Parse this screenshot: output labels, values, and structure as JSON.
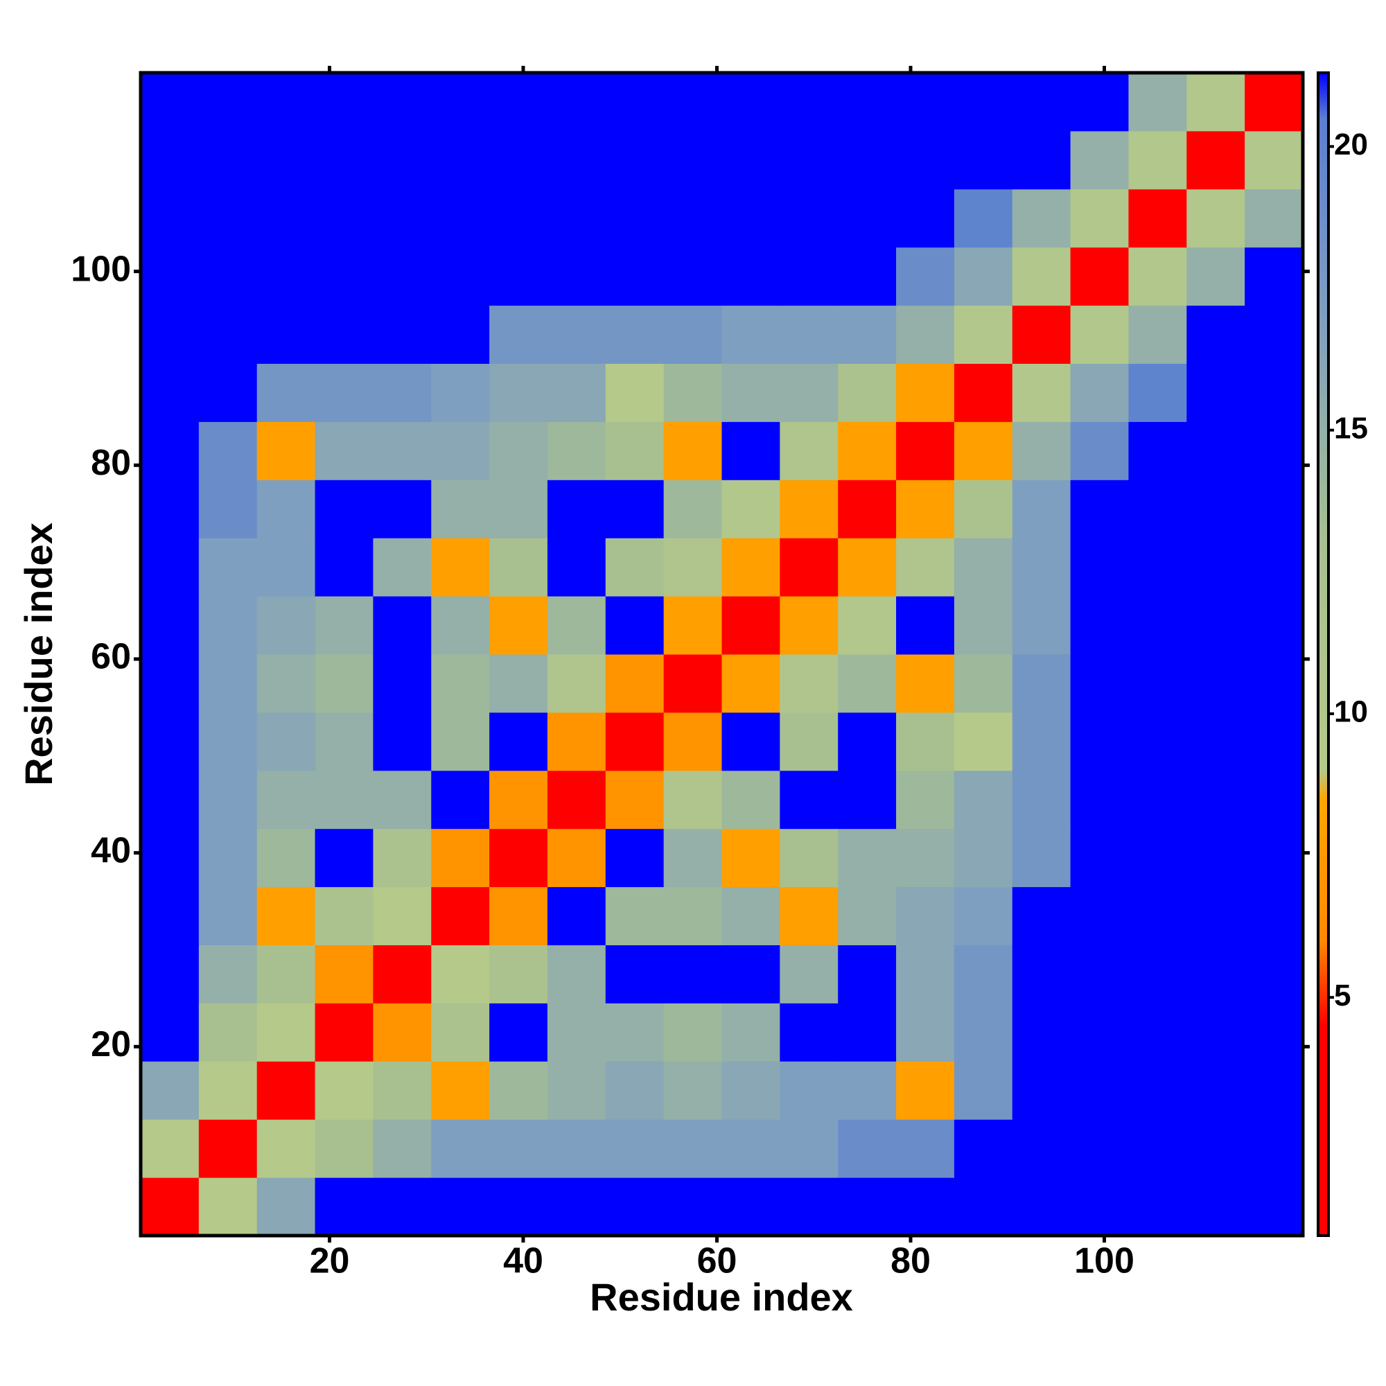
{
  "chart_data": {
    "type": "heatmap",
    "xlabel": "Residue index",
    "ylabel": "Residue index",
    "x": [
      3.5,
      9.5,
      15.5,
      21.5,
      27.5,
      33.5,
      39.5,
      45.5,
      51.5,
      57.5,
      63.5,
      69.5,
      75.5,
      81.5,
      87.5,
      93.5,
      99.5,
      105.5,
      111.5,
      117.5
    ],
    "y": [
      3.5,
      9.5,
      15.5,
      21.5,
      27.5,
      33.5,
      39.5,
      45.5,
      51.5,
      57.5,
      63.5,
      69.5,
      75.5,
      81.5,
      87.5,
      93.5,
      99.5,
      105.5,
      111.5,
      117.5
    ],
    "z": [
      [
        3,
        9,
        16,
        21.3,
        21.3,
        21.3,
        21.3,
        21.3,
        21.3,
        21.3,
        21.3,
        21.3,
        21.3,
        21.3,
        21.3,
        21.3,
        21.3,
        21.3,
        21.3,
        21.3
      ],
      [
        9,
        3,
        9,
        13,
        15,
        17,
        17,
        17,
        17,
        17,
        17,
        17,
        19,
        19,
        21.3,
        21.3,
        21.3,
        21.3,
        21.3,
        21.3
      ],
      [
        16,
        9,
        3,
        9,
        13,
        8,
        14,
        15,
        16,
        15,
        16,
        17,
        17,
        8,
        18,
        21.3,
        21.3,
        21.3,
        21.3,
        21.3
      ],
      [
        21.3,
        13,
        9,
        3,
        7,
        12,
        21.3,
        15,
        15,
        14,
        15,
        21.3,
        21.3,
        16,
        18,
        21.3,
        21.3,
        21.3,
        21.3,
        21.3
      ],
      [
        21.3,
        15,
        13,
        7,
        3,
        9,
        12,
        15,
        21.3,
        21.3,
        21.3,
        15,
        21.3,
        16,
        18,
        21.3,
        21.3,
        21.3,
        21.3,
        21.3
      ],
      [
        21.3,
        17,
        8,
        12,
        9,
        3,
        7,
        21.3,
        14,
        14,
        15,
        8,
        15,
        16,
        17,
        21.3,
        21.3,
        21.3,
        21.3,
        21.3
      ],
      [
        21.3,
        17,
        14,
        21.3,
        12,
        7,
        3,
        7,
        21.3,
        15,
        8,
        13,
        15,
        15,
        16,
        18,
        21.3,
        21.3,
        21.3,
        21.3
      ],
      [
        21.3,
        17,
        15,
        15,
        15,
        21.3,
        7,
        3,
        7,
        11,
        14,
        21.3,
        21.3,
        14,
        16,
        18,
        21.3,
        21.3,
        21.3,
        21.3
      ],
      [
        21.3,
        17,
        16,
        15,
        21.3,
        14,
        21.3,
        7,
        3,
        7,
        21.3,
        13,
        21.3,
        13,
        9,
        18,
        21.3,
        21.3,
        21.3,
        21.3
      ],
      [
        21.3,
        17,
        15,
        14,
        21.3,
        14,
        15,
        11,
        7,
        3,
        8,
        11,
        14,
        8,
        14,
        18,
        21.3,
        21.3,
        21.3,
        21.3
      ],
      [
        21.3,
        17,
        16,
        15,
        21.3,
        15,
        8,
        14,
        21.3,
        8,
        3,
        8,
        10,
        21.3,
        15,
        17,
        21.3,
        21.3,
        21.3,
        21.3
      ],
      [
        21.3,
        17,
        17,
        21.3,
        15,
        8,
        13,
        21.3,
        13,
        11,
        8,
        3,
        8,
        11,
        15,
        17,
        21.3,
        21.3,
        21.3,
        21.3
      ],
      [
        21.3,
        19,
        17,
        21.3,
        21.3,
        15,
        15,
        21.3,
        21.3,
        14,
        10,
        8,
        3,
        8,
        12,
        17,
        21.3,
        21.3,
        21.3,
        21.3
      ],
      [
        21.3,
        19,
        8,
        16,
        16,
        16,
        15,
        14,
        13,
        8,
        21.3,
        11,
        8,
        3,
        8,
        15,
        19,
        21.3,
        21.3,
        21.3
      ],
      [
        21.3,
        21.3,
        18,
        18,
        18,
        17,
        16,
        16,
        9,
        14,
        15,
        15,
        12,
        8,
        3,
        10,
        16,
        20,
        21.3,
        21.3
      ],
      [
        21.3,
        21.3,
        21.3,
        21.3,
        21.3,
        21.3,
        18,
        18,
        18,
        18,
        17,
        17,
        17,
        15,
        10,
        3,
        10,
        15,
        21.3,
        21.3
      ],
      [
        21.3,
        21.3,
        21.3,
        21.3,
        21.3,
        21.3,
        21.3,
        21.3,
        21.3,
        21.3,
        21.3,
        21.3,
        21.3,
        19,
        16,
        10,
        3,
        10,
        15,
        21.3
      ],
      [
        21.3,
        21.3,
        21.3,
        21.3,
        21.3,
        21.3,
        21.3,
        21.3,
        21.3,
        21.3,
        21.3,
        21.3,
        21.3,
        21.3,
        20,
        15,
        10,
        3,
        10,
        15
      ],
      [
        21.3,
        21.3,
        21.3,
        21.3,
        21.3,
        21.3,
        21.3,
        21.3,
        21.3,
        21.3,
        21.3,
        21.3,
        21.3,
        21.3,
        21.3,
        21.3,
        15,
        10,
        3,
        10
      ],
      [
        21.3,
        21.3,
        21.3,
        21.3,
        21.3,
        21.3,
        21.3,
        21.3,
        21.3,
        21.3,
        21.3,
        21.3,
        21.3,
        21.3,
        21.3,
        21.3,
        21.3,
        15,
        10,
        3
      ]
    ],
    "xlim": [
      0.5,
      120.5
    ],
    "ylim": [
      0.5,
      120.5
    ],
    "xticks": [
      20,
      40,
      60,
      80,
      100
    ],
    "yticks": [
      20,
      40,
      60,
      80,
      100
    ],
    "clim": [
      0.8,
      21.3
    ],
    "cticks": [
      5,
      10,
      15,
      20
    ],
    "colorscale": [
      [
        0.8,
        "#ff0000"
      ],
      [
        4.5,
        "#ff0000"
      ],
      [
        6,
        "#ff8800"
      ],
      [
        8.5,
        "#ffa500"
      ],
      [
        9,
        "#b5c98a"
      ],
      [
        13,
        "#a8c090"
      ],
      [
        17,
        "#7f9fc0"
      ],
      [
        20.5,
        "#5a7fd0"
      ],
      [
        21.3,
        "#0000ff"
      ]
    ]
  }
}
